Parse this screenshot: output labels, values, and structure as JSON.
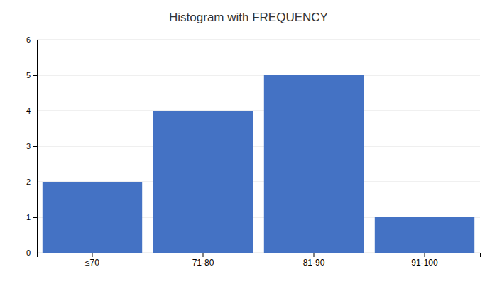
{
  "chart_data": {
    "type": "bar",
    "title": "Histogram with FREQUENCY",
    "categories": [
      "≤70",
      "71-80",
      "81-90",
      "91-100"
    ],
    "values": [
      2,
      4,
      5,
      1
    ],
    "color": "#4472C4",
    "ylim": [
      0,
      6
    ],
    "yticks": [
      0,
      1,
      2,
      3,
      4,
      5,
      6
    ],
    "grid": true
  }
}
